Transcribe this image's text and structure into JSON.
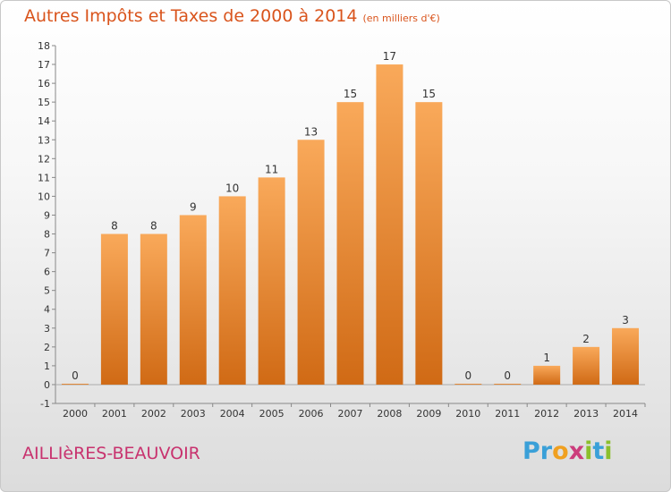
{
  "title": "Autres Impôts et Taxes de 2000 à 2014",
  "subtitle": "(en milliers d'€)",
  "commune": "AILLIèRES-BEAUVOIR",
  "brand": {
    "letters": [
      "P",
      "r",
      "o",
      "x",
      "i",
      "t",
      "i"
    ],
    "colors": [
      "#3aa0d8",
      "#3aa0d8",
      "#f0a020",
      "#cc3c7c",
      "#8cbf2c",
      "#3aa0d8",
      "#8cbf2c"
    ]
  },
  "colors": {
    "bar_light": "#f9a95a",
    "bar_dark": "#d06a15",
    "title": "#d9541c",
    "commune": "#c8326e"
  },
  "chart_data": {
    "type": "bar",
    "title": "Autres Impôts et Taxes de 2000 à 2014",
    "subtitle": "(en milliers d'€)",
    "categories": [
      "2000",
      "2001",
      "2002",
      "2003",
      "2004",
      "2005",
      "2006",
      "2007",
      "2008",
      "2009",
      "2010",
      "2011",
      "2012",
      "2013",
      "2014"
    ],
    "values": [
      0,
      8,
      8,
      9,
      10,
      11,
      13,
      15,
      17,
      15,
      0,
      0,
      1,
      2,
      3
    ],
    "ylim": [
      -1,
      18
    ],
    "yticks": [
      -1,
      0,
      1,
      2,
      3,
      4,
      5,
      6,
      7,
      8,
      9,
      10,
      11,
      12,
      13,
      14,
      15,
      16,
      17,
      18
    ],
    "grid": false
  }
}
